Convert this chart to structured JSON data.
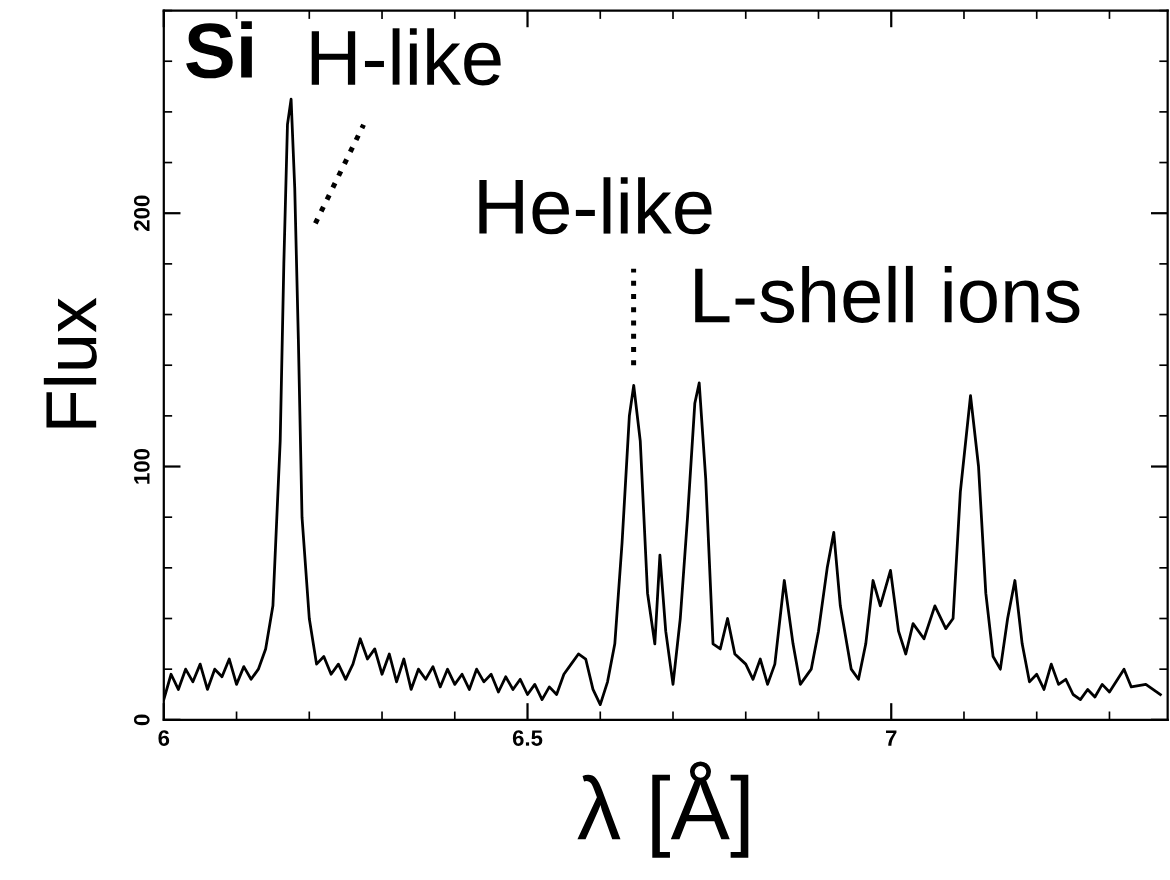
{
  "chart_data": {
    "type": "line",
    "title": "Si",
    "xlabel": "λ [Å]",
    "ylabel": "Flux",
    "xlim": [
      6,
      7.38
    ],
    "ylim": [
      0,
      280
    ],
    "xticks": [
      6,
      6.5,
      7
    ],
    "yticks": [
      0,
      100,
      200
    ],
    "grid": false,
    "marker": "none",
    "line_style": "solid",
    "annotations": [
      "H-like",
      "He-like",
      "L-shell ions"
    ],
    "series": [
      {
        "color": "#000000",
        "x": [
          6.0,
          6.01,
          6.02,
          6.03,
          6.04,
          6.05,
          6.06,
          6.07,
          6.08,
          6.09,
          6.1,
          6.11,
          6.12,
          6.13,
          6.14,
          6.15,
          6.16,
          6.165,
          6.17,
          6.175,
          6.18,
          6.185,
          6.19,
          6.2,
          6.21,
          6.22,
          6.23,
          6.24,
          6.25,
          6.26,
          6.27,
          6.28,
          6.29,
          6.3,
          6.31,
          6.32,
          6.33,
          6.34,
          6.35,
          6.36,
          6.37,
          6.38,
          6.39,
          6.4,
          6.41,
          6.42,
          6.43,
          6.44,
          6.45,
          6.46,
          6.47,
          6.48,
          6.49,
          6.5,
          6.51,
          6.52,
          6.53,
          6.54,
          6.55,
          6.56,
          6.57,
          6.58,
          6.59,
          6.6,
          6.61,
          6.62,
          6.63,
          6.64,
          6.646,
          6.655,
          6.665,
          6.675,
          6.682,
          6.69,
          6.7,
          6.71,
          6.72,
          6.73,
          6.736,
          6.745,
          6.755,
          6.765,
          6.775,
          6.785,
          6.8,
          6.81,
          6.82,
          6.83,
          6.84,
          6.853,
          6.865,
          6.875,
          6.89,
          6.9,
          6.912,
          6.921,
          6.93,
          6.945,
          6.955,
          6.965,
          6.975,
          6.985,
          6.999,
          7.01,
          7.02,
          7.03,
          7.045,
          7.06,
          7.075,
          7.085,
          7.095,
          7.109,
          7.12,
          7.13,
          7.14,
          7.15,
          7.16,
          7.17,
          7.18,
          7.19,
          7.2,
          7.21,
          7.22,
          7.23,
          7.24,
          7.25,
          7.26,
          7.27,
          7.28,
          7.29,
          7.3,
          7.32,
          7.33,
          7.35,
          7.37
        ],
        "values": [
          8,
          18,
          12,
          20,
          15,
          22,
          12,
          20,
          17,
          24,
          14,
          21,
          16,
          20,
          28,
          45,
          110,
          180,
          235,
          245,
          210,
          150,
          80,
          40,
          22,
          25,
          18,
          22,
          16,
          22,
          32,
          24,
          28,
          18,
          26,
          15,
          24,
          12,
          20,
          16,
          21,
          13,
          20,
          14,
          18,
          12,
          20,
          15,
          18,
          11,
          17,
          12,
          16,
          10,
          14,
          8,
          13,
          10,
          18,
          22,
          26,
          24,
          12,
          6,
          15,
          30,
          70,
          120,
          132,
          110,
          50,
          30,
          65,
          35,
          14,
          40,
          80,
          125,
          133,
          95,
          30,
          28,
          40,
          26,
          22,
          16,
          24,
          14,
          22,
          55,
          30,
          14,
          20,
          35,
          60,
          74,
          45,
          20,
          16,
          30,
          55,
          45,
          59,
          35,
          26,
          38,
          32,
          45,
          36,
          40,
          90,
          128,
          100,
          50,
          25,
          20,
          40,
          55,
          30,
          15,
          18,
          12,
          22,
          14,
          16,
          10,
          8,
          12,
          9,
          14,
          11,
          20,
          13,
          14,
          10
        ]
      }
    ]
  }
}
